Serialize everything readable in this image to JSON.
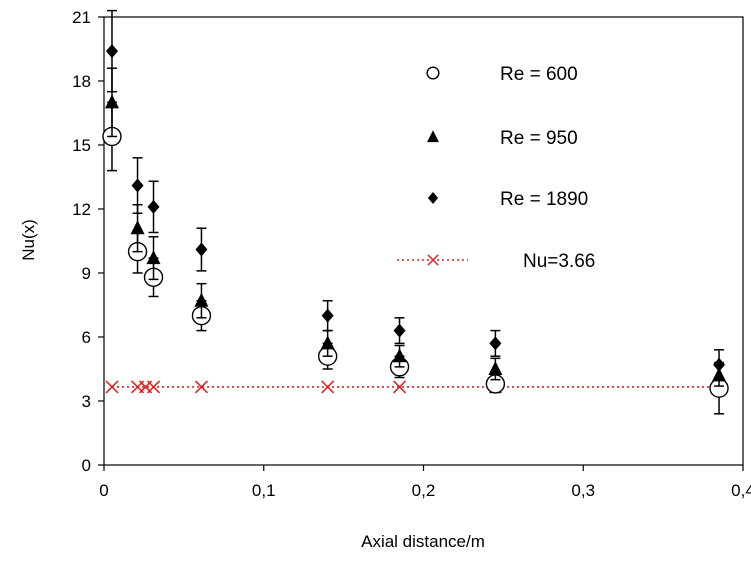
{
  "chart_data": {
    "type": "scatter",
    "title": "",
    "xlabel": "Axial distance/m",
    "ylabel": "Nu(x)",
    "xlim": [
      0,
      0.4
    ],
    "ylim": [
      0,
      21
    ],
    "x_ticks": [
      "0",
      "0,1",
      "0,2",
      "0,3",
      "0,4"
    ],
    "y_ticks": [
      "0",
      "3",
      "6",
      "9",
      "12",
      "15",
      "18",
      "21"
    ],
    "x_tick_values": [
      0,
      0.1,
      0.2,
      0.3,
      0.4
    ],
    "y_tick_values": [
      0,
      3,
      6,
      9,
      12,
      15,
      18,
      21
    ],
    "grid": false,
    "legend_position": "top-right",
    "series": [
      {
        "name": "Re = 600",
        "marker": "open-circle",
        "color": "#000000",
        "points": [
          {
            "x": 0.005,
            "y": 15.4,
            "err": 1.6
          },
          {
            "x": 0.021,
            "y": 10.0,
            "err": 1.0
          },
          {
            "x": 0.031,
            "y": 8.8,
            "err": 0.9
          },
          {
            "x": 0.061,
            "y": 7.0,
            "err": 0.7
          },
          {
            "x": 0.14,
            "y": 5.1,
            "err": 0.6
          },
          {
            "x": 0.185,
            "y": 4.6,
            "err": 0.5
          },
          {
            "x": 0.245,
            "y": 3.8,
            "err": 0.4
          },
          {
            "x": 0.385,
            "y": 3.6,
            "err": 1.2
          }
        ]
      },
      {
        "name": "Re = 950",
        "marker": "filled-triangle",
        "color": "#000000",
        "points": [
          {
            "x": 0.005,
            "y": 17.0,
            "err": 1.6
          },
          {
            "x": 0.021,
            "y": 11.1,
            "err": 1.1
          },
          {
            "x": 0.031,
            "y": 9.7,
            "err": 1.0
          },
          {
            "x": 0.061,
            "y": 7.7,
            "err": 0.8
          },
          {
            "x": 0.14,
            "y": 5.7,
            "err": 0.6
          },
          {
            "x": 0.185,
            "y": 5.1,
            "err": 0.5
          },
          {
            "x": 0.245,
            "y": 4.5,
            "err": 0.5
          },
          {
            "x": 0.385,
            "y": 4.2,
            "err": 0.5
          }
        ]
      },
      {
        "name": "Re = 1890",
        "marker": "filled-diamond",
        "color": "#000000",
        "points": [
          {
            "x": 0.005,
            "y": 19.4,
            "err": 1.9
          },
          {
            "x": 0.021,
            "y": 13.1,
            "err": 1.3
          },
          {
            "x": 0.031,
            "y": 12.1,
            "err": 1.2
          },
          {
            "x": 0.061,
            "y": 10.1,
            "err": 1.0
          },
          {
            "x": 0.14,
            "y": 7.0,
            "err": 0.7
          },
          {
            "x": 0.185,
            "y": 6.3,
            "err": 0.6
          },
          {
            "x": 0.245,
            "y": 5.7,
            "err": 0.6
          },
          {
            "x": 0.385,
            "y": 4.7,
            "err": 0.7
          }
        ]
      },
      {
        "name": "Nu=3.66",
        "marker": "x",
        "line": "dotted",
        "color": "#e02020",
        "points": [
          {
            "x": 0.005,
            "y": 3.66
          },
          {
            "x": 0.021,
            "y": 3.66
          },
          {
            "x": 0.026,
            "y": 3.66
          },
          {
            "x": 0.031,
            "y": 3.66
          },
          {
            "x": 0.061,
            "y": 3.66
          },
          {
            "x": 0.14,
            "y": 3.66
          },
          {
            "x": 0.185,
            "y": 3.66
          },
          {
            "x": 0.245,
            "y": 3.66
          },
          {
            "x": 0.385,
            "y": 3.66
          }
        ]
      }
    ]
  }
}
